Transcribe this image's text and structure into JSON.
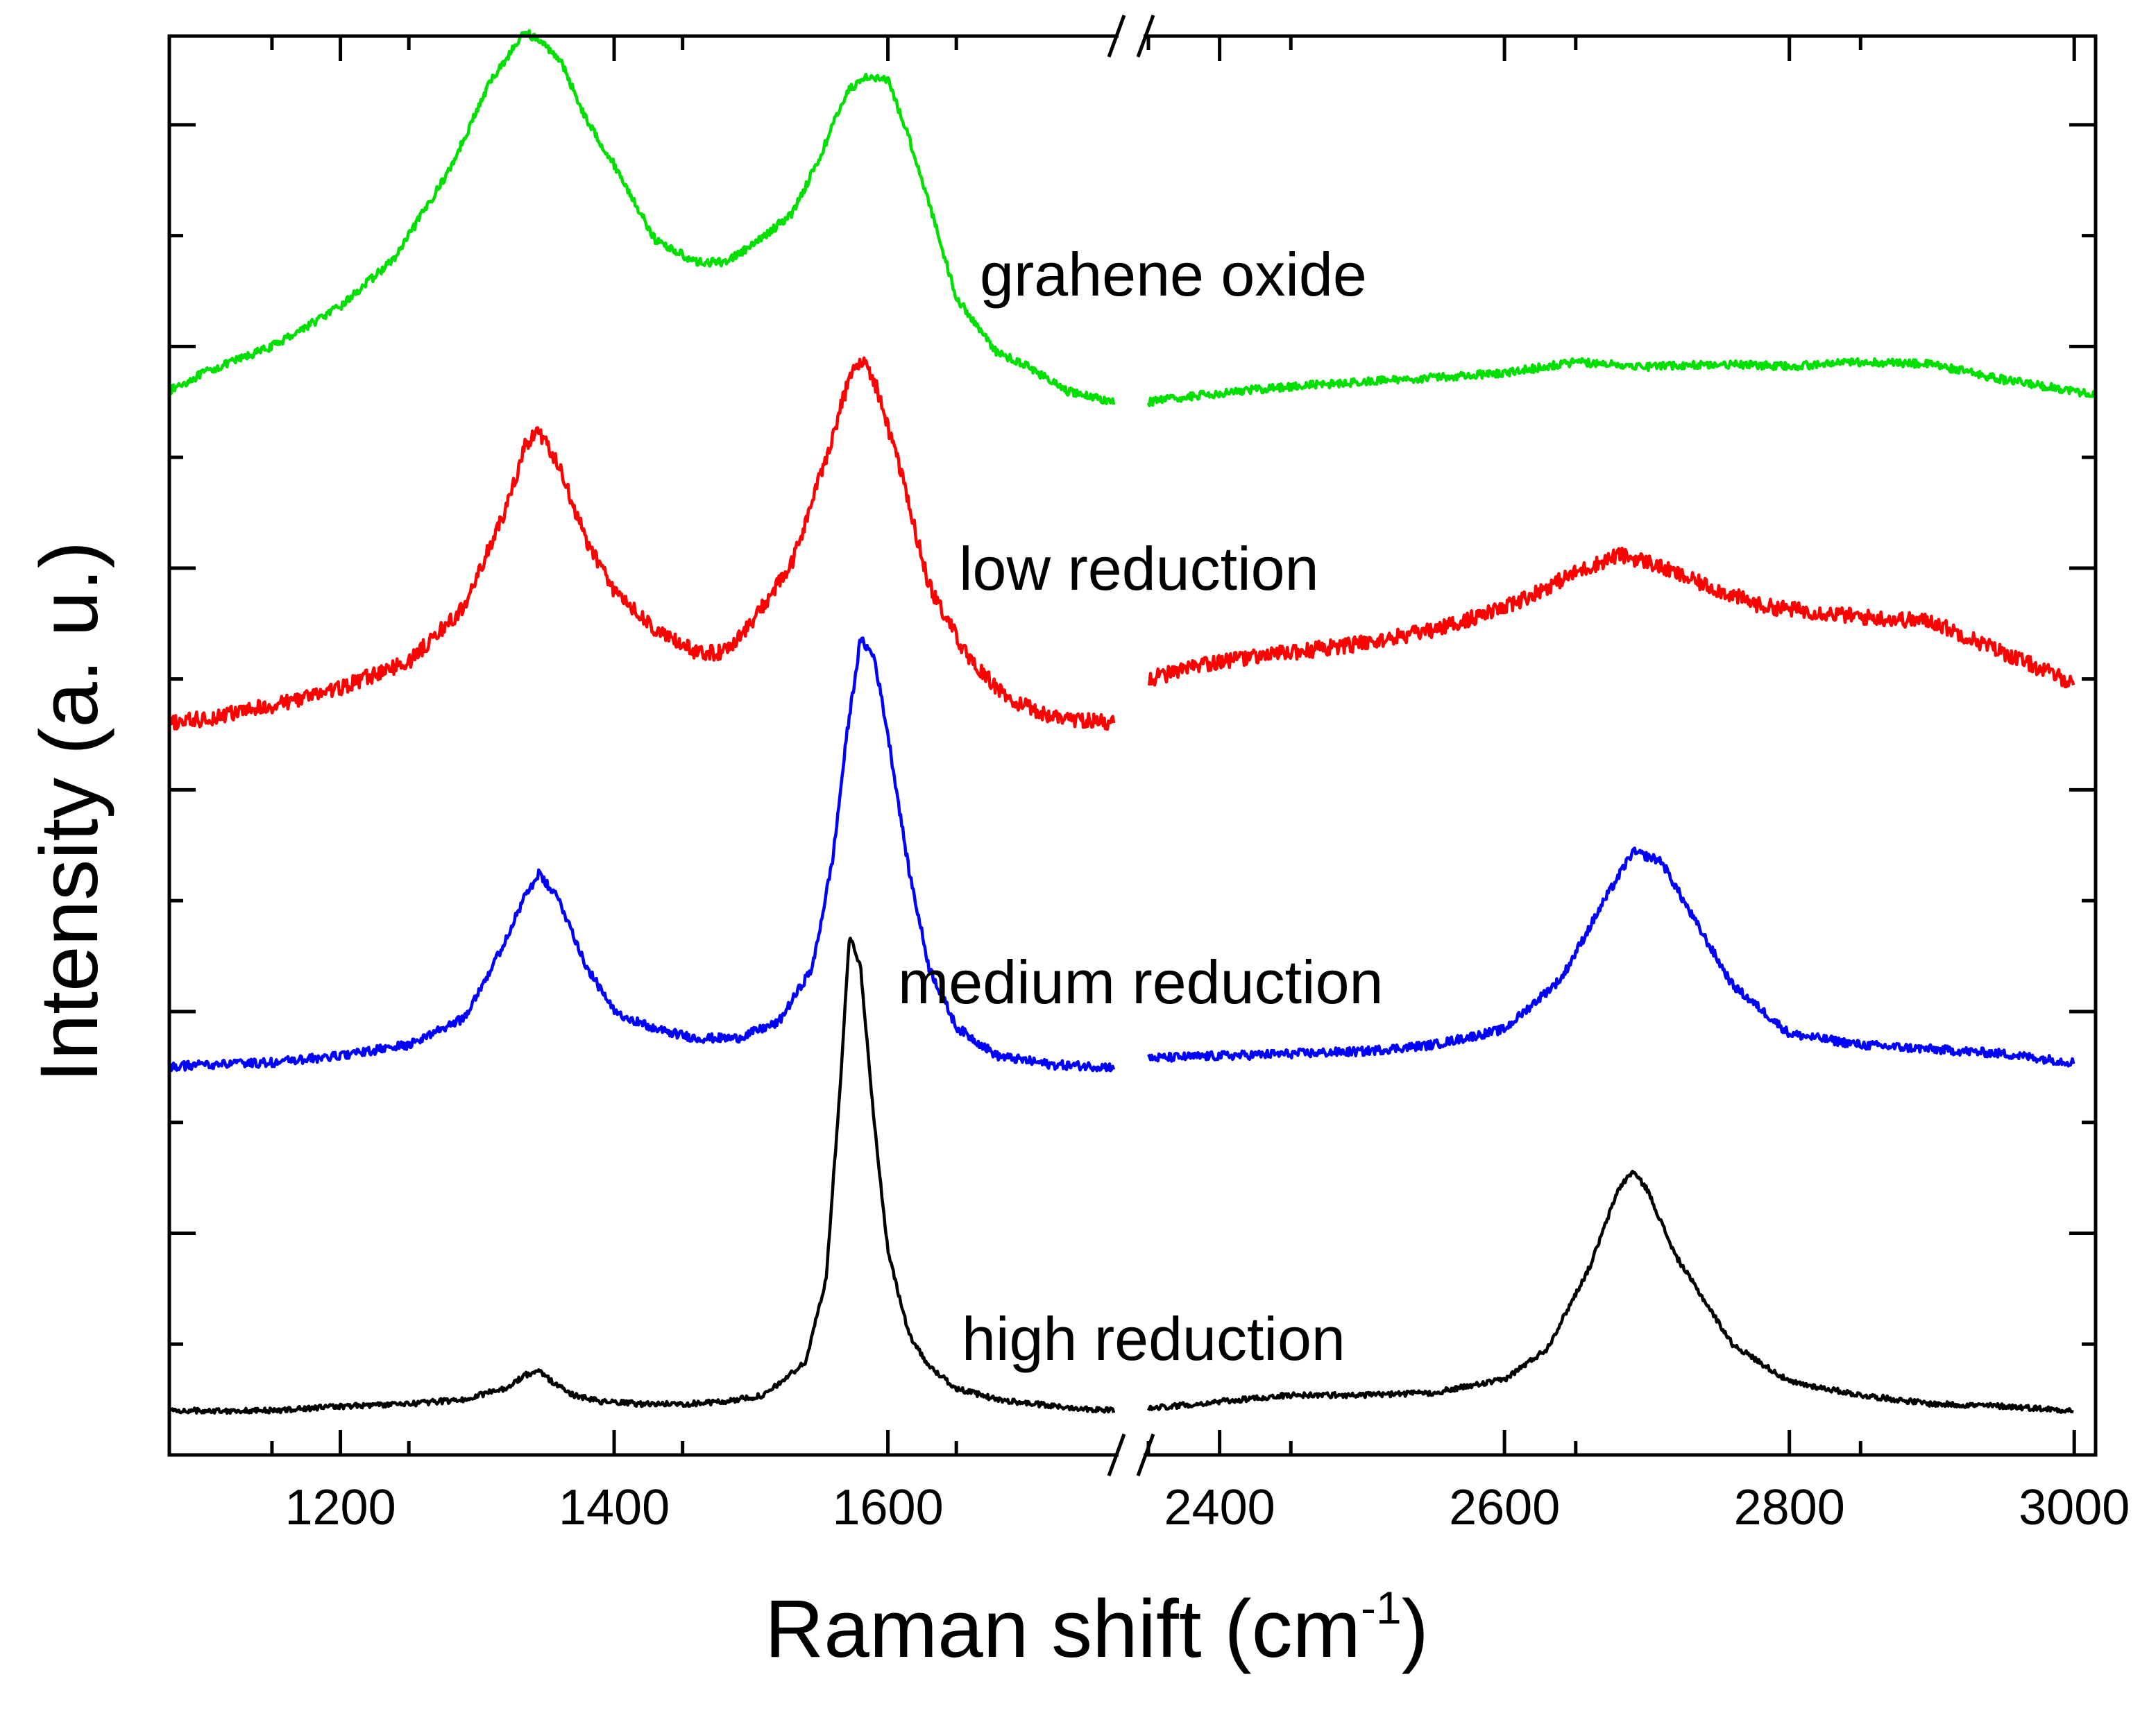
{
  "chart_data": {
    "type": "line",
    "title": "",
    "xlabel": "Raman shift (cm",
    "xlabel_superscript": "-1",
    "xlabel_suffix": ")",
    "ylabel": "Intensity (a. u.)",
    "x_axis_break": true,
    "x_segments": [
      {
        "xlim": [
          1075,
          1765
        ],
        "ticks": [
          1200,
          1400,
          1600
        ],
        "tick_labels": [
          "1200",
          "1400",
          "1600"
        ]
      },
      {
        "xlim": [
          2350,
          3015
        ],
        "ticks": [
          2400,
          2600,
          2800,
          3000
        ],
        "tick_labels": [
          "2400",
          "2600",
          "2800",
          "3000"
        ]
      }
    ],
    "ylim": [
      0,
      6.4
    ],
    "y_ticks": [
      0.5,
      1,
      1.5,
      2,
      2.5,
      3,
      3.5,
      4,
      4.5,
      5,
      5.5,
      6
    ],
    "y_ticklabels_shown": false,
    "series": [
      {
        "name": "grahene oxide",
        "color": "#00e000",
        "noise": 0.018,
        "x": [
          1075,
          1100,
          1150,
          1200,
          1240,
          1280,
          1310,
          1335,
          1345,
          1360,
          1380,
          1400,
          1430,
          1460,
          1480,
          1500,
          1530,
          1550,
          1570,
          1585,
          1600,
          1615,
          1630,
          1650,
          1680,
          1700,
          1730,
          1765,
          2350,
          2400,
          2450,
          2500,
          2550,
          2600,
          2650,
          2700,
          2750,
          2800,
          2850,
          2900,
          2950,
          3000,
          3015
        ],
        "y": [
          4.8,
          4.88,
          5.0,
          5.18,
          5.4,
          5.8,
          6.2,
          6.42,
          6.38,
          6.3,
          6.02,
          5.82,
          5.48,
          5.38,
          5.38,
          5.45,
          5.6,
          5.85,
          6.15,
          6.22,
          6.2,
          5.95,
          5.65,
          5.22,
          4.97,
          4.92,
          4.8,
          4.75,
          4.75,
          4.79,
          4.82,
          4.84,
          4.86,
          4.88,
          4.93,
          4.91,
          4.92,
          4.91,
          4.93,
          4.92,
          4.85,
          4.8,
          4.78
        ]
      },
      {
        "name": "low reduction",
        "color": "#ff0000",
        "noise": 0.035,
        "x": [
          1075,
          1100,
          1150,
          1200,
          1250,
          1290,
          1320,
          1335,
          1345,
          1360,
          1380,
          1400,
          1430,
          1460,
          1480,
          1500,
          1530,
          1555,
          1570,
          1580,
          1590,
          1610,
          1630,
          1660,
          1690,
          1720,
          1765,
          2350,
          2400,
          2450,
          2500,
          2550,
          2600,
          2650,
          2680,
          2700,
          2730,
          2780,
          2850,
          2900,
          2950,
          3000
        ],
        "y": [
          3.3,
          3.32,
          3.38,
          3.46,
          3.58,
          3.82,
          4.25,
          4.55,
          4.62,
          4.45,
          4.12,
          3.9,
          3.72,
          3.62,
          3.62,
          3.75,
          4.02,
          4.5,
          4.82,
          4.95,
          4.85,
          4.42,
          3.92,
          3.58,
          3.4,
          3.33,
          3.3,
          3.5,
          3.58,
          3.62,
          3.66,
          3.72,
          3.82,
          3.98,
          4.06,
          4.03,
          3.95,
          3.83,
          3.78,
          3.76,
          3.62,
          3.48
        ]
      },
      {
        "name": "medium reduction",
        "color": "#0000ff",
        "noise": 0.02,
        "x": [
          1075,
          1100,
          1150,
          1200,
          1250,
          1290,
          1315,
          1335,
          1345,
          1360,
          1380,
          1400,
          1430,
          1460,
          1490,
          1520,
          1545,
          1560,
          1570,
          1580,
          1590,
          1600,
          1615,
          1630,
          1650,
          1680,
          1720,
          1765,
          2350,
          2400,
          2450,
          2500,
          2550,
          2600,
          2640,
          2670,
          2690,
          2710,
          2730,
          2760,
          2800,
          2850,
          2900,
          2950,
          3000
        ],
        "y": [
          1.75,
          1.76,
          1.77,
          1.8,
          1.85,
          1.97,
          2.25,
          2.52,
          2.62,
          2.5,
          2.2,
          2.0,
          1.92,
          1.88,
          1.88,
          1.95,
          2.2,
          2.7,
          3.25,
          3.68,
          3.6,
          3.25,
          2.65,
          2.2,
          1.93,
          1.8,
          1.76,
          1.75,
          1.79,
          1.8,
          1.81,
          1.82,
          1.85,
          1.92,
          2.15,
          2.5,
          2.72,
          2.68,
          2.45,
          2.12,
          1.9,
          1.85,
          1.83,
          1.81,
          1.77
        ]
      },
      {
        "name": "high reduction",
        "color": "#000000",
        "noise": 0.012,
        "x": [
          1075,
          1100,
          1150,
          1200,
          1250,
          1290,
          1320,
          1335,
          1345,
          1355,
          1370,
          1390,
          1420,
          1450,
          1480,
          1510,
          1540,
          1555,
          1565,
          1572,
          1580,
          1590,
          1600,
          1615,
          1630,
          1650,
          1680,
          1720,
          1765,
          2350,
          2400,
          2450,
          2500,
          2550,
          2600,
          2630,
          2660,
          2680,
          2690,
          2700,
          2720,
          2760,
          2800,
          2850,
          2900,
          2950,
          3000
        ],
        "y": [
          0.2,
          0.2,
          0.2,
          0.22,
          0.23,
          0.25,
          0.3,
          0.36,
          0.38,
          0.33,
          0.27,
          0.24,
          0.23,
          0.23,
          0.24,
          0.27,
          0.42,
          0.8,
          1.65,
          2.35,
          2.2,
          1.5,
          0.92,
          0.55,
          0.4,
          0.3,
          0.25,
          0.22,
          0.2,
          0.21,
          0.24,
          0.27,
          0.27,
          0.28,
          0.34,
          0.48,
          0.85,
          1.2,
          1.28,
          1.2,
          0.9,
          0.5,
          0.33,
          0.27,
          0.23,
          0.22,
          0.2
        ]
      }
    ]
  }
}
